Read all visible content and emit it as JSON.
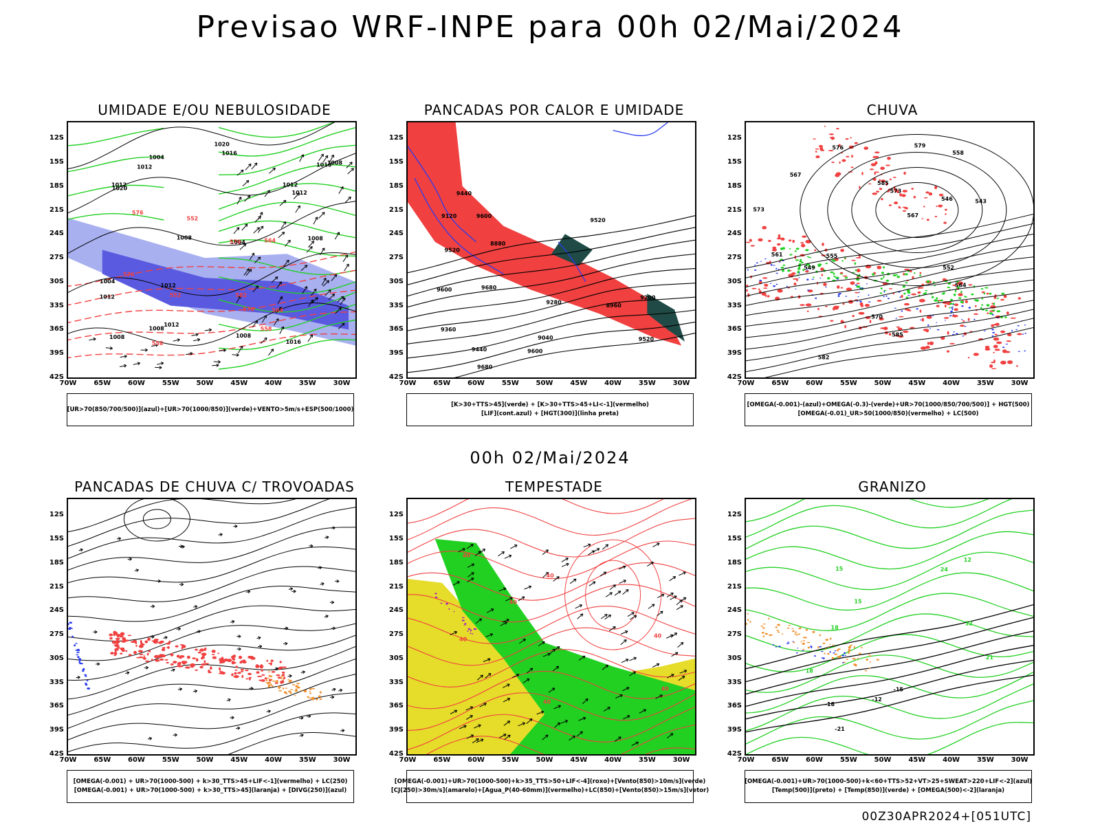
{
  "main_title": "Previsao WRF-INPE  para 00h 02/Mai/2024",
  "mid_title": "00h 02/Mai/2024",
  "footer_stamp": "00Z30APR2024+[051UTC]",
  "axes": {
    "lat_labels": [
      "12S",
      "15S",
      "18S",
      "21S",
      "24S",
      "27S",
      "30S",
      "33S",
      "36S",
      "39S",
      "42S"
    ],
    "lon_labels": [
      "70W",
      "65W",
      "60W",
      "55W",
      "50W",
      "45W",
      "40W",
      "35W",
      "30W"
    ]
  },
  "colors": {
    "blue": "#2a3bf0",
    "green": "#22d022",
    "red": "#f04040",
    "orange": "#f09030",
    "yellow": "#e6dc2a",
    "purple": "#a020c0",
    "dark_teal": "#1f4a46",
    "light_blue": "#a8b0f0"
  },
  "panels": [
    {
      "title": "UMIDADE E/OU NEBULOSIDADE",
      "legend": [
        "[UR>70(850/700/500)](azul)+[UR>70(1000/850)](verde)+VENTO>5m/s+ESP(500/1000)"
      ],
      "contour_labels": [
        "1012",
        "1008",
        "1008",
        "1016",
        "1012",
        "1020",
        "1004",
        "1008",
        "1012",
        "1016",
        "1012",
        "1004",
        "1012",
        "1008",
        "1012",
        "1016",
        "1008",
        "1012",
        "1020",
        "1008",
        "1004",
        "552",
        "558",
        "564",
        "570",
        "576",
        "582",
        "564",
        "558",
        "570",
        "576",
        "552"
      ]
    },
    {
      "title": "PANCADAS POR CALOR E UMIDADE",
      "legend": [
        "[K>30+TTS>45](verde) + [K>30+TTS>45+LI<-1](vermelho)",
        "[LIF](cont.azul) + [HGT(300)](linha preta)"
      ],
      "contour_labels": [
        "9680",
        "9600",
        "9520",
        "9680",
        "9440",
        "9360",
        "9280",
        "9200",
        "9120",
        "9040",
        "8960",
        "8880",
        "9600",
        "9520",
        "9600",
        "9520",
        "9440"
      ]
    },
    {
      "title": "CHUVA",
      "legend": [
        "[OMEGA(-0.001)-(azul)+OMEGA(-0.3)-(verde)+UR>70(1000/850/700/500)] + HGT(500)",
        "[OMEGA(-0.01)_UR>50(1000/850)(vermelho) + LC(500)"
      ],
      "contour_labels": [
        "582",
        "585",
        "585",
        "579",
        "576",
        "573",
        "570",
        "567",
        "564",
        "561",
        "558",
        "555",
        "552",
        "549",
        "546",
        "543",
        "567",
        "573"
      ]
    },
    {
      "title": "PANCADAS DE CHUVA C/ TROVOADAS",
      "legend": [
        "[OMEGA(-0.001) + UR>70(1000-500) + k>30_TTS>45+LIF<-1](vermelho) + LC(250)",
        "[OMEGA(-0.001) + UR>70(1000-500) + k>30_TTS>45](laranja) + [DIVG(250)](azul)"
      ],
      "contour_labels": []
    },
    {
      "title": "TEMPESTADE",
      "legend": [
        "[OMEGA(-0.001)+UR>70(1000-500)+k>35_TTS>50+LIF<-4](roxo)+[Vento(850)>10m/s](verde)",
        "[CJ(250)>30m/s](amarelo)+[Agua_P(40-60mm)](vermelho)+LC(850)+[Vento(850)>15m/s](vetor)"
      ],
      "contour_labels": [
        "40",
        "40",
        "40",
        "40",
        "40",
        "40",
        "40"
      ]
    },
    {
      "title": "GRANIZO",
      "legend": [
        "[OMEGA(-0.001)+UR>70(1000-500)+k<60+TTS>52+VT>25+SWEAT>220+LIF<-2](azul)",
        "[Temp(500)](preto) + [Temp(850)](verde) + [OMEGA(500)<-2](laranja)"
      ],
      "contour_labels": [
        "-21",
        "-18",
        "-15",
        "-12",
        "12",
        "15",
        "18",
        "21",
        "24",
        "12",
        "15",
        "18"
      ]
    }
  ]
}
